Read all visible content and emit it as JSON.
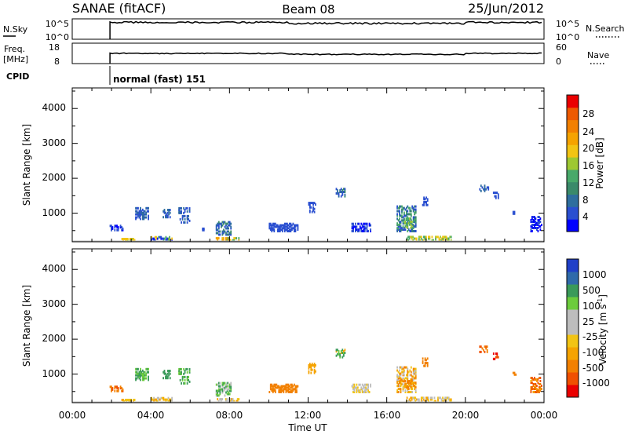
{
  "header": {
    "title": "SANAE (fitACF)",
    "beam": "Beam 08",
    "date": "25/Jun/2012"
  },
  "nsky_panel": {
    "left_label": "N.Sky",
    "left_ticks": [
      "10^5",
      "10^0"
    ],
    "right_ticks": [
      "10^5",
      "10^0"
    ],
    "right_label": "N.Search"
  },
  "freq_panel": {
    "left_label_1": "Freq.",
    "left_label_2": "[MHz]",
    "left_ticks": [
      "18",
      "8"
    ],
    "right_ticks": [
      "60",
      "0"
    ],
    "right_label": "Nave"
  },
  "cpid": {
    "label": "CPID",
    "value": "normal (fast) 151"
  },
  "chart_data": [
    {
      "type": "heatmap",
      "name": "power",
      "ylabel": "Slant Range [km]",
      "yticks": [
        "4000",
        "3000",
        "2000",
        "1000"
      ],
      "ytick_values": [
        4000,
        3000,
        2000,
        1000
      ],
      "ylim": [
        180,
        4590
      ],
      "xlim": [
        0,
        24
      ],
      "colorbar_label": "Power [dB]",
      "colorbar_ticks": [
        "28",
        "24",
        "20",
        "16",
        "12",
        "8",
        "4"
      ],
      "colorbar_colors": [
        "#0000ff",
        "#2a4fd0",
        "#2e6e9e",
        "#3a8a6a",
        "#48a96a",
        "#9ec832",
        "#f2c414",
        "#f5a300",
        "#f28000",
        "#ee5a00",
        "#ea0000"
      ],
      "clusters": [
        {
          "t0": 1.9,
          "t1": 2.6,
          "r0": 480,
          "r1": 640,
          "c": [
            0,
            1
          ]
        },
        {
          "t0": 3.2,
          "t1": 3.9,
          "r0": 800,
          "r1": 1150,
          "c": [
            1,
            2
          ]
        },
        {
          "t0": 4.6,
          "t1": 5.0,
          "r0": 850,
          "r1": 1100,
          "c": [
            1,
            2
          ]
        },
        {
          "t0": 5.4,
          "t1": 6.0,
          "r0": 700,
          "r1": 1150,
          "c": [
            1,
            2
          ]
        },
        {
          "t0": 6.6,
          "t1": 6.8,
          "r0": 480,
          "r1": 560,
          "c": [
            1
          ]
        },
        {
          "t0": 7.3,
          "t1": 8.1,
          "r0": 350,
          "r1": 750,
          "c": [
            1,
            2,
            3
          ]
        },
        {
          "t0": 4.0,
          "t1": 5.1,
          "r0": 190,
          "r1": 320,
          "c": [
            0,
            1,
            4,
            6
          ]
        },
        {
          "t0": 7.3,
          "t1": 8.5,
          "r0": 190,
          "r1": 300,
          "c": [
            4,
            6,
            7
          ]
        },
        {
          "t0": 13.4,
          "t1": 13.9,
          "r0": 1450,
          "r1": 1700,
          "c": [
            1,
            2,
            3
          ]
        },
        {
          "t0": 12.0,
          "t1": 12.4,
          "r0": 1000,
          "r1": 1300,
          "c": [
            1
          ]
        },
        {
          "t0": 14.2,
          "t1": 15.2,
          "r0": 450,
          "r1": 700,
          "c": [
            0,
            1
          ]
        },
        {
          "t0": 16.5,
          "t1": 17.5,
          "r0": 450,
          "r1": 1200,
          "c": [
            1,
            2,
            3,
            4
          ]
        },
        {
          "t0": 16.9,
          "t1": 17.3,
          "r0": 550,
          "r1": 850,
          "c": [
            4,
            5
          ]
        },
        {
          "t0": 17.0,
          "t1": 19.3,
          "r0": 190,
          "r1": 330,
          "c": [
            4,
            5,
            6
          ]
        },
        {
          "t0": 17.8,
          "t1": 18.1,
          "r0": 1200,
          "r1": 1450,
          "c": [
            1
          ]
        },
        {
          "t0": 20.7,
          "t1": 21.2,
          "r0": 1600,
          "r1": 1800,
          "c": [
            1,
            2
          ]
        },
        {
          "t0": 21.4,
          "t1": 21.7,
          "r0": 1400,
          "r1": 1600,
          "c": [
            1
          ]
        },
        {
          "t0": 22.4,
          "t1": 22.6,
          "r0": 950,
          "r1": 1050,
          "c": [
            1
          ]
        },
        {
          "t0": 23.3,
          "t1": 23.9,
          "r0": 450,
          "r1": 900,
          "c": [
            0,
            1
          ]
        },
        {
          "t0": 10.0,
          "t1": 11.5,
          "r0": 450,
          "r1": 700,
          "c": [
            1
          ]
        },
        {
          "t0": 2.5,
          "t1": 3.2,
          "r0": 190,
          "r1": 260,
          "c": [
            5,
            6
          ]
        }
      ]
    },
    {
      "type": "heatmap",
      "name": "velocity",
      "ylabel": "Slant Range [km]",
      "yticks": [
        "4000",
        "3000",
        "2000",
        "1000"
      ],
      "ytick_values": [
        4000,
        3000,
        2000,
        1000
      ],
      "ylim": [
        180,
        4590
      ],
      "xlim": [
        0,
        24
      ],
      "xlabel": "Time UT",
      "xticks": [
        "00:00",
        "04:00",
        "08:00",
        "12:00",
        "16:00",
        "20:00",
        "00:00"
      ],
      "xtick_values": [
        0,
        4,
        8,
        12,
        16,
        20,
        24
      ],
      "colorbar_label": "Velocity [m s-1]",
      "colorbar_ticks": [
        "1000",
        "500",
        "100",
        "25",
        "-25",
        "-100",
        "-500",
        "-1000"
      ],
      "colorbar_colors": [
        "#ea0000",
        "#f05000",
        "#f28000",
        "#f5a300",
        "#f2c414",
        "#bdbdbd",
        "#bdbdbd",
        "#6ccc3c",
        "#3a9a5a",
        "#2f6aaa",
        "#2040c8"
      ],
      "clusters": [
        {
          "t0": 1.9,
          "t1": 2.6,
          "r0": 480,
          "r1": 640,
          "c": [
            1,
            2
          ]
        },
        {
          "t0": 3.2,
          "t1": 3.9,
          "r0": 800,
          "r1": 1150,
          "c": [
            8,
            7
          ]
        },
        {
          "t0": 4.6,
          "t1": 5.0,
          "r0": 850,
          "r1": 1100,
          "c": [
            8
          ]
        },
        {
          "t0": 5.4,
          "t1": 6.0,
          "r0": 700,
          "r1": 1150,
          "c": [
            8,
            7
          ]
        },
        {
          "t0": 7.3,
          "t1": 8.1,
          "r0": 350,
          "r1": 750,
          "c": [
            8,
            7,
            5
          ]
        },
        {
          "t0": 4.0,
          "t1": 5.1,
          "r0": 190,
          "r1": 320,
          "c": [
            3,
            4,
            5
          ]
        },
        {
          "t0": 7.3,
          "t1": 8.5,
          "r0": 190,
          "r1": 300,
          "c": [
            3,
            4,
            5
          ]
        },
        {
          "t0": 13.4,
          "t1": 13.9,
          "r0": 1450,
          "r1": 1700,
          "c": [
            8,
            7,
            3
          ]
        },
        {
          "t0": 12.0,
          "t1": 12.4,
          "r0": 1000,
          "r1": 1300,
          "c": [
            3
          ]
        },
        {
          "t0": 14.2,
          "t1": 15.2,
          "r0": 450,
          "r1": 700,
          "c": [
            5,
            6,
            4
          ]
        },
        {
          "t0": 16.5,
          "t1": 17.5,
          "r0": 450,
          "r1": 1200,
          "c": [
            2,
            3,
            4,
            5
          ]
        },
        {
          "t0": 16.9,
          "t1": 17.3,
          "r0": 550,
          "r1": 850,
          "c": [
            2,
            3
          ]
        },
        {
          "t0": 17.0,
          "t1": 19.3,
          "r0": 190,
          "r1": 330,
          "c": [
            3,
            4,
            5
          ]
        },
        {
          "t0": 17.8,
          "t1": 18.1,
          "r0": 1200,
          "r1": 1450,
          "c": [
            2
          ]
        },
        {
          "t0": 20.7,
          "t1": 21.2,
          "r0": 1600,
          "r1": 1800,
          "c": [
            1,
            2
          ]
        },
        {
          "t0": 21.4,
          "t1": 21.7,
          "r0": 1400,
          "r1": 1600,
          "c": [
            0,
            1
          ]
        },
        {
          "t0": 22.4,
          "t1": 22.6,
          "r0": 950,
          "r1": 1050,
          "c": [
            2
          ]
        },
        {
          "t0": 23.3,
          "t1": 23.9,
          "r0": 450,
          "r1": 900,
          "c": [
            1,
            2,
            3
          ]
        },
        {
          "t0": 10.0,
          "t1": 11.5,
          "r0": 450,
          "r1": 700,
          "c": [
            2
          ]
        },
        {
          "t0": 2.5,
          "t1": 3.2,
          "r0": 190,
          "r1": 260,
          "c": [
            3,
            4
          ]
        }
      ]
    }
  ]
}
